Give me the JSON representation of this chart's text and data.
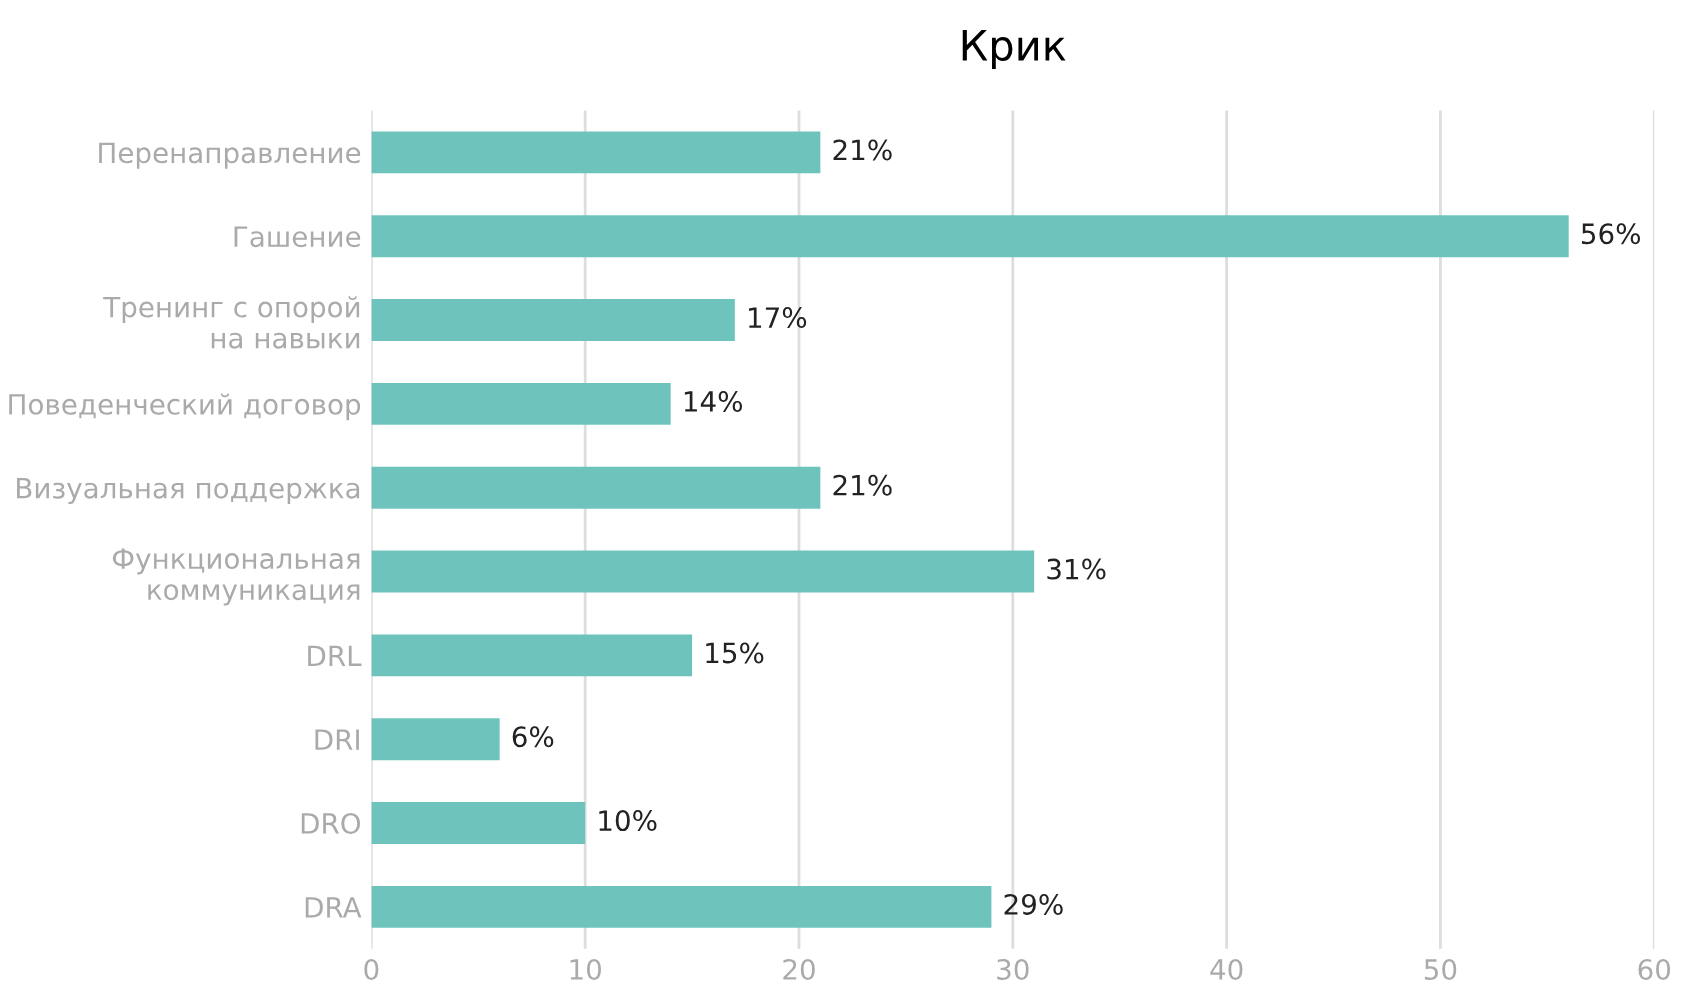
{
  "chart_data": {
    "type": "bar",
    "orientation": "horizontal",
    "title": "Крик",
    "categories": [
      "Перенаправление",
      "Гашение",
      "Тренинг с опорой\nна навыки",
      "Поведенческий договор",
      "Визуальная поддержка",
      "Функциональная\nкоммуникация",
      "DRL",
      "DRI",
      "DRO",
      "DRA"
    ],
    "values": [
      21,
      56,
      17,
      14,
      21,
      31,
      15,
      6,
      10,
      29
    ],
    "value_labels": [
      "21%",
      "56%",
      "17%",
      "14%",
      "21%",
      "31%",
      "15%",
      "6%",
      "10%",
      "29%"
    ],
    "color": "#6ec4bc",
    "xlim": [
      0,
      60
    ],
    "xticks": [
      0,
      10,
      20,
      30,
      40,
      50,
      60
    ],
    "grid": "x"
  }
}
